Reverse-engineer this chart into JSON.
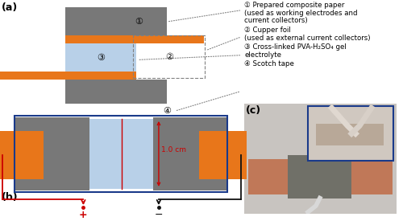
{
  "bg_color": "#ffffff",
  "orange_color": "#E8761A",
  "gray_color": "#787878",
  "blue_gel_color": "#b8d0e8",
  "blue_border_color": "#1a3a8a",
  "red_color": "#cc0000",
  "dark_color": "#111111",
  "label_a": "(a)",
  "label_b": "(b)",
  "label_c": "(c)",
  "ann1_circle": "①",
  "ann1_line1": " Prepared composite paper",
  "ann1_line2": "(used as working electrodes and",
  "ann1_line3": "current collectors)",
  "ann2_circle": "②",
  "ann2_line1": " Cupper foil",
  "ann2_line2": "(used as external current collectors)",
  "ann3_circle": "③",
  "ann3_line1": " Cross-linked PVA-H₂SO₄ gel",
  "ann3_line2": "electrolyte",
  "ann4_circle": "④",
  "ann4_line1": " Scotch tape",
  "dim_label": "1.0 cm",
  "plus_label": "+",
  "minus_label": "−",
  "photo_bg": "#c8c0b8",
  "photo_inset_bg": "#d8c8b0",
  "photo_bar_color": "#c07858",
  "photo_device_color": "#888070",
  "photo_wire_color": "#e0e0e0"
}
